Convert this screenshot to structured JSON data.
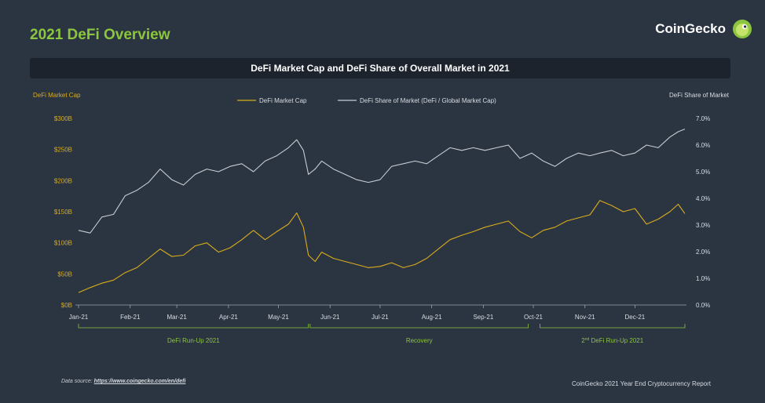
{
  "page": {
    "title": "2021 DeFi Overview",
    "brand": "CoinGecko",
    "chart_title": "DeFi Market Cap and DeFi Share of Overall Market  in 2021",
    "footer_source_label": "Data source:",
    "footer_source_link": "https://www.coingecko.com/en/defi",
    "footer_report": "CoinGecko 2021 Year End Cryptocurrency Report"
  },
  "colors": {
    "background": "#2b3441",
    "market_cap": "#d9ad1c",
    "share": "#c8ccd2",
    "accent": "#8cc63f",
    "axis": "#d9dde2"
  },
  "chart_data": {
    "type": "line",
    "title": "DeFi Market Cap and DeFi Share of Overall Market  in 2021",
    "ylabel_left": "DeFi Market Cap",
    "ylabel_right": "DeFi Share of Market",
    "x_ticks": [
      "Jan-21",
      "Feb-21",
      "Mar-21",
      "Apr-21",
      "May-21",
      "Jun-21",
      "Jul-21",
      "Aug-21",
      "Sep-21",
      "Oct-21",
      "Nov-21",
      "Dec-21"
    ],
    "y_left": {
      "min": 0,
      "max": 300,
      "ticks": [
        "$0B",
        "$50B",
        "$100B",
        "$150B",
        "$200B",
        "$250B",
        "$300B"
      ]
    },
    "y_right": {
      "min": 0,
      "max": 7,
      "ticks": [
        "0.0%",
        "1.0%",
        "2.0%",
        "3.0%",
        "4.0%",
        "5.0%",
        "6.0%",
        "7.0%"
      ]
    },
    "legend": {
      "placement": "top-center"
    },
    "series": [
      {
        "name": "DeFi Market Cap",
        "axis": "left",
        "unit": "B USD",
        "points": [
          [
            "2021-01-01",
            20
          ],
          [
            "2021-01-08",
            28
          ],
          [
            "2021-01-15",
            35
          ],
          [
            "2021-01-22",
            40
          ],
          [
            "2021-01-29",
            52
          ],
          [
            "2021-02-05",
            60
          ],
          [
            "2021-02-12",
            75
          ],
          [
            "2021-02-19",
            90
          ],
          [
            "2021-02-26",
            78
          ],
          [
            "2021-03-05",
            80
          ],
          [
            "2021-03-12",
            95
          ],
          [
            "2021-03-19",
            100
          ],
          [
            "2021-03-26",
            85
          ],
          [
            "2021-04-02",
            92
          ],
          [
            "2021-04-09",
            105
          ],
          [
            "2021-04-16",
            120
          ],
          [
            "2021-04-23",
            105
          ],
          [
            "2021-04-30",
            118
          ],
          [
            "2021-05-07",
            130
          ],
          [
            "2021-05-12",
            148
          ],
          [
            "2021-05-16",
            125
          ],
          [
            "2021-05-19",
            80
          ],
          [
            "2021-05-23",
            70
          ],
          [
            "2021-05-27",
            85
          ],
          [
            "2021-06-03",
            75
          ],
          [
            "2021-06-10",
            70
          ],
          [
            "2021-06-17",
            65
          ],
          [
            "2021-06-24",
            60
          ],
          [
            "2021-07-01",
            62
          ],
          [
            "2021-07-08",
            68
          ],
          [
            "2021-07-15",
            60
          ],
          [
            "2021-07-22",
            65
          ],
          [
            "2021-07-29",
            75
          ],
          [
            "2021-08-05",
            90
          ],
          [
            "2021-08-12",
            105
          ],
          [
            "2021-08-19",
            112
          ],
          [
            "2021-08-26",
            118
          ],
          [
            "2021-09-02",
            125
          ],
          [
            "2021-09-09",
            130
          ],
          [
            "2021-09-16",
            135
          ],
          [
            "2021-09-23",
            118
          ],
          [
            "2021-09-30",
            108
          ],
          [
            "2021-10-07",
            120
          ],
          [
            "2021-10-14",
            125
          ],
          [
            "2021-10-21",
            135
          ],
          [
            "2021-10-28",
            140
          ],
          [
            "2021-11-04",
            145
          ],
          [
            "2021-11-10",
            168
          ],
          [
            "2021-11-17",
            160
          ],
          [
            "2021-11-24",
            150
          ],
          [
            "2021-12-01",
            155
          ],
          [
            "2021-12-08",
            130
          ],
          [
            "2021-12-15",
            138
          ],
          [
            "2021-12-22",
            150
          ],
          [
            "2021-12-27",
            162
          ],
          [
            "2021-12-31",
            147
          ]
        ]
      },
      {
        "name": "DeFi Share of Market (DeFi / Global Market Cap)",
        "axis": "right",
        "unit": "%",
        "points": [
          [
            "2021-01-01",
            2.8
          ],
          [
            "2021-01-08",
            2.7
          ],
          [
            "2021-01-15",
            3.3
          ],
          [
            "2021-01-22",
            3.4
          ],
          [
            "2021-01-29",
            4.1
          ],
          [
            "2021-02-05",
            4.3
          ],
          [
            "2021-02-12",
            4.6
          ],
          [
            "2021-02-19",
            5.1
          ],
          [
            "2021-02-26",
            4.7
          ],
          [
            "2021-03-05",
            4.5
          ],
          [
            "2021-03-12",
            4.9
          ],
          [
            "2021-03-19",
            5.1
          ],
          [
            "2021-03-26",
            5.0
          ],
          [
            "2021-04-02",
            5.2
          ],
          [
            "2021-04-09",
            5.3
          ],
          [
            "2021-04-16",
            5.0
          ],
          [
            "2021-04-23",
            5.4
          ],
          [
            "2021-04-30",
            5.6
          ],
          [
            "2021-05-07",
            5.9
          ],
          [
            "2021-05-12",
            6.2
          ],
          [
            "2021-05-16",
            5.8
          ],
          [
            "2021-05-19",
            4.9
          ],
          [
            "2021-05-23",
            5.1
          ],
          [
            "2021-05-27",
            5.4
          ],
          [
            "2021-06-03",
            5.1
          ],
          [
            "2021-06-10",
            4.9
          ],
          [
            "2021-06-17",
            4.7
          ],
          [
            "2021-06-24",
            4.6
          ],
          [
            "2021-07-01",
            4.7
          ],
          [
            "2021-07-08",
            5.2
          ],
          [
            "2021-07-15",
            5.3
          ],
          [
            "2021-07-22",
            5.4
          ],
          [
            "2021-07-29",
            5.3
          ],
          [
            "2021-08-05",
            5.6
          ],
          [
            "2021-08-12",
            5.9
          ],
          [
            "2021-08-19",
            5.8
          ],
          [
            "2021-08-26",
            5.9
          ],
          [
            "2021-09-02",
            5.8
          ],
          [
            "2021-09-09",
            5.9
          ],
          [
            "2021-09-16",
            6.0
          ],
          [
            "2021-09-23",
            5.5
          ],
          [
            "2021-09-30",
            5.7
          ],
          [
            "2021-10-07",
            5.4
          ],
          [
            "2021-10-14",
            5.2
          ],
          [
            "2021-10-21",
            5.5
          ],
          [
            "2021-10-28",
            5.7
          ],
          [
            "2021-11-04",
            5.6
          ],
          [
            "2021-11-10",
            5.7
          ],
          [
            "2021-11-17",
            5.8
          ],
          [
            "2021-11-24",
            5.6
          ],
          [
            "2021-12-01",
            5.7
          ],
          [
            "2021-12-08",
            6.0
          ],
          [
            "2021-12-15",
            5.9
          ],
          [
            "2021-12-22",
            6.3
          ],
          [
            "2021-12-27",
            6.5
          ],
          [
            "2021-12-31",
            6.6
          ]
        ]
      }
    ],
    "periods": [
      {
        "label": "DeFi Run-Up 2021",
        "start": "2021-01-01",
        "end": "2021-05-19"
      },
      {
        "label": "Recovery",
        "start": "2021-05-20",
        "end": "2021-09-28"
      },
      {
        "label_prefix": "2",
        "label_sup": "nd",
        "label_suffix": " DeFi Run-Up 2021",
        "start": "2021-10-05",
        "end": "2021-12-31"
      }
    ]
  }
}
